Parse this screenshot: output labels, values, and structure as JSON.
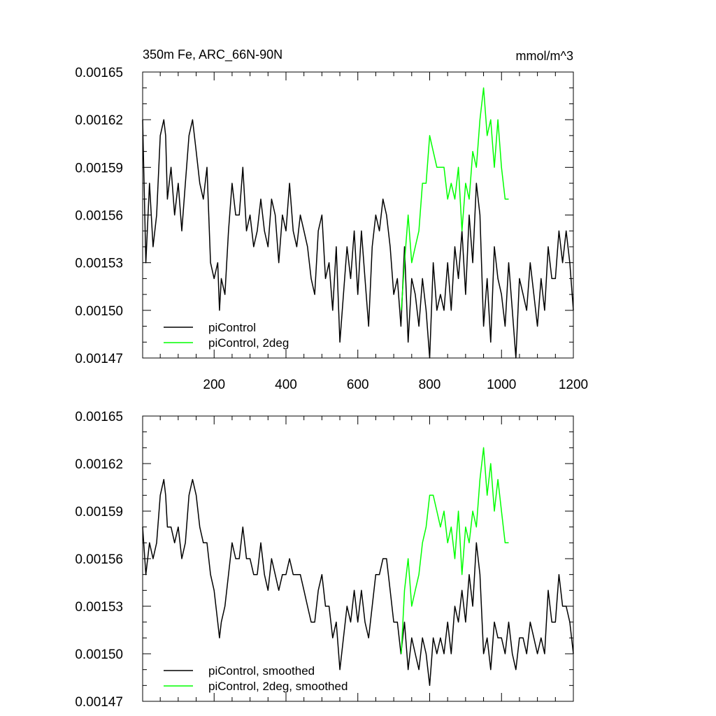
{
  "title_left": "350m Fe, ARC_66N-90N",
  "title_right": "mmol/m^3",
  "colors": {
    "black": "#000000",
    "green": "#00ff00"
  },
  "chart_data": [
    {
      "type": "line",
      "title": "350m Fe, ARC_66N-90N",
      "units": "mmol/m^3",
      "xlim": [
        1,
        1200
      ],
      "ylim": [
        0.00147,
        0.00165
      ],
      "xticks": [
        "200",
        "400",
        "600",
        "800",
        "1000",
        "1200"
      ],
      "yticks": [
        "0.00147",
        "0.00150",
        "0.00153",
        "0.00156",
        "0.00159",
        "0.00162",
        "0.00165"
      ],
      "legend": [
        "piControl",
        "piControl, 2deg"
      ],
      "legend_position": "bottom-left",
      "series": [
        {
          "name": "piControl",
          "color": "#000000",
          "x": [
            1,
            10,
            20,
            30,
            40,
            50,
            60,
            65,
            70,
            80,
            90,
            100,
            110,
            120,
            130,
            140,
            150,
            160,
            170,
            180,
            190,
            200,
            210,
            215,
            220,
            230,
            240,
            250,
            260,
            270,
            280,
            290,
            300,
            310,
            320,
            330,
            340,
            350,
            360,
            370,
            380,
            390,
            400,
            410,
            420,
            430,
            440,
            450,
            460,
            470,
            480,
            490,
            500,
            510,
            520,
            530,
            540,
            550,
            560,
            570,
            580,
            590,
            600,
            610,
            620,
            630,
            640,
            650,
            660,
            670,
            680,
            690,
            700,
            710,
            720,
            730,
            740,
            750,
            760,
            770,
            780,
            790,
            800,
            810,
            820,
            830,
            840,
            850,
            860,
            870,
            880,
            890,
            900,
            910,
            920,
            930,
            940,
            950,
            960,
            970,
            980,
            990,
            1000,
            1010,
            1020,
            1030,
            1040,
            1050,
            1060,
            1070,
            1080,
            1090,
            1100,
            1110,
            1120,
            1130,
            1140,
            1150,
            1160,
            1170,
            1180,
            1190,
            1200
          ],
          "values": [
            0.00162,
            0.00153,
            0.00158,
            0.00154,
            0.00156,
            0.00161,
            0.00162,
            0.00161,
            0.00157,
            0.00159,
            0.00156,
            0.00158,
            0.00155,
            0.00158,
            0.00161,
            0.00162,
            0.0016,
            0.00158,
            0.00157,
            0.00159,
            0.00153,
            0.00152,
            0.00153,
            0.0015,
            0.00152,
            0.00151,
            0.00155,
            0.00158,
            0.00156,
            0.00156,
            0.00159,
            0.00155,
            0.00156,
            0.00154,
            0.00155,
            0.00157,
            0.00155,
            0.00154,
            0.00157,
            0.00156,
            0.00153,
            0.00156,
            0.00155,
            0.00158,
            0.00155,
            0.00154,
            0.00156,
            0.00155,
            0.00154,
            0.00152,
            0.00151,
            0.00155,
            0.00156,
            0.00152,
            0.00153,
            0.0015,
            0.00154,
            0.00148,
            0.00151,
            0.00154,
            0.00152,
            0.00155,
            0.00151,
            0.00155,
            0.00152,
            0.00149,
            0.00154,
            0.00156,
            0.00155,
            0.00157,
            0.00156,
            0.00154,
            0.00151,
            0.00152,
            0.00149,
            0.00154,
            0.00148,
            0.00152,
            0.00151,
            0.00149,
            0.00152,
            0.0015,
            0.00147,
            0.00153,
            0.0015,
            0.00151,
            0.0015,
            0.00153,
            0.0015,
            0.00154,
            0.00152,
            0.00155,
            0.00151,
            0.00156,
            0.00153,
            0.00158,
            0.00156,
            0.00149,
            0.00152,
            0.00148,
            0.00154,
            0.00152,
            0.00151,
            0.00149,
            0.00153,
            0.0015,
            0.00147,
            0.00152,
            0.00151,
            0.0015,
            0.00153,
            0.00151,
            0.00149,
            0.00152,
            0.0015,
            0.00154,
            0.00152,
            0.00152,
            0.00155,
            0.00153,
            0.00155,
            0.00153,
            0.0015
          ]
        },
        {
          "name": "piControl, 2deg",
          "color": "#00ff00",
          "x": [
            721,
            730,
            740,
            750,
            760,
            770,
            780,
            790,
            800,
            810,
            820,
            830,
            840,
            850,
            860,
            870,
            880,
            890,
            900,
            910,
            920,
            930,
            940,
            950,
            960,
            970,
            980,
            990,
            1000,
            1010,
            1020
          ],
          "values": [
            0.0015,
            0.00153,
            0.00156,
            0.00153,
            0.00154,
            0.00155,
            0.00158,
            0.00158,
            0.00161,
            0.0016,
            0.00159,
            0.00159,
            0.00159,
            0.00157,
            0.00158,
            0.00157,
            0.00159,
            0.00155,
            0.00158,
            0.00157,
            0.0016,
            0.00159,
            0.00162,
            0.00164,
            0.00161,
            0.00162,
            0.00159,
            0.00162,
            0.00159,
            0.00157,
            0.00157
          ]
        }
      ]
    },
    {
      "type": "line",
      "xlim": [
        1,
        1200
      ],
      "ylim": [
        0.00147,
        0.00165
      ],
      "yticks": [
        "0.00147",
        "0.00150",
        "0.00153",
        "0.00156",
        "0.00159",
        "0.00162",
        "0.00165"
      ],
      "legend": [
        "piControl, smoothed",
        "piControl, 2deg, smoothed"
      ],
      "legend_position": "bottom-left",
      "series": [
        {
          "name": "piControl, smoothed",
          "color": "#000000",
          "x": [
            1,
            10,
            20,
            30,
            40,
            50,
            60,
            65,
            70,
            80,
            90,
            100,
            110,
            120,
            130,
            140,
            150,
            160,
            170,
            180,
            190,
            200,
            210,
            215,
            220,
            230,
            240,
            250,
            260,
            270,
            280,
            290,
            300,
            310,
            320,
            330,
            340,
            350,
            360,
            370,
            380,
            390,
            400,
            410,
            420,
            430,
            440,
            450,
            460,
            470,
            480,
            490,
            500,
            510,
            520,
            530,
            540,
            550,
            560,
            570,
            580,
            590,
            600,
            610,
            620,
            630,
            640,
            650,
            660,
            670,
            680,
            690,
            700,
            710,
            720,
            730,
            740,
            750,
            760,
            770,
            780,
            790,
            800,
            810,
            820,
            830,
            840,
            850,
            860,
            870,
            880,
            890,
            900,
            910,
            920,
            930,
            940,
            950,
            960,
            970,
            980,
            990,
            1000,
            1010,
            1020,
            1030,
            1040,
            1050,
            1060,
            1070,
            1080,
            1090,
            1100,
            1110,
            1120,
            1130,
            1140,
            1150,
            1160,
            1170,
            1180,
            1190,
            1200
          ],
          "values": [
            0.00158,
            0.00155,
            0.00157,
            0.00156,
            0.00157,
            0.0016,
            0.00161,
            0.0016,
            0.00158,
            0.00158,
            0.00157,
            0.00158,
            0.00156,
            0.00157,
            0.0016,
            0.00161,
            0.0016,
            0.00158,
            0.00157,
            0.00157,
            0.00155,
            0.00154,
            0.00152,
            0.00151,
            0.00152,
            0.00153,
            0.00155,
            0.00157,
            0.00156,
            0.00156,
            0.00158,
            0.00156,
            0.00156,
            0.00155,
            0.00155,
            0.00157,
            0.00155,
            0.00154,
            0.00156,
            0.00155,
            0.00154,
            0.00155,
            0.00155,
            0.00156,
            0.00155,
            0.00155,
            0.00155,
            0.00154,
            0.00153,
            0.00152,
            0.00152,
            0.00154,
            0.00155,
            0.00153,
            0.00153,
            0.00151,
            0.00152,
            0.00149,
            0.00151,
            0.00153,
            0.00152,
            0.00154,
            0.00152,
            0.00154,
            0.00152,
            0.00151,
            0.00153,
            0.00155,
            0.00155,
            0.00156,
            0.00156,
            0.00154,
            0.00152,
            0.00152,
            0.0015,
            0.00152,
            0.00149,
            0.00151,
            0.0015,
            0.00149,
            0.00151,
            0.0015,
            0.00148,
            0.00151,
            0.0015,
            0.00151,
            0.0015,
            0.00152,
            0.0015,
            0.00153,
            0.00152,
            0.00154,
            0.00152,
            0.00155,
            0.00153,
            0.00157,
            0.00155,
            0.0015,
            0.00151,
            0.00149,
            0.00152,
            0.00151,
            0.00151,
            0.0015,
            0.00152,
            0.0015,
            0.00149,
            0.00151,
            0.00151,
            0.0015,
            0.00152,
            0.00151,
            0.0015,
            0.00151,
            0.0015,
            0.00154,
            0.00152,
            0.00152,
            0.00155,
            0.00153,
            0.00153,
            0.00152,
            0.0015
          ]
        },
        {
          "name": "piControl, 2deg, smoothed",
          "color": "#00ff00",
          "x": [
            721,
            730,
            740,
            750,
            760,
            770,
            780,
            790,
            800,
            810,
            820,
            830,
            840,
            850,
            860,
            870,
            880,
            890,
            900,
            910,
            920,
            930,
            940,
            950,
            960,
            970,
            980,
            990,
            1000,
            1010,
            1020
          ],
          "values": [
            0.0015,
            0.00154,
            0.00156,
            0.00153,
            0.00154,
            0.00155,
            0.00157,
            0.00158,
            0.0016,
            0.0016,
            0.00159,
            0.00158,
            0.00159,
            0.00157,
            0.00158,
            0.00156,
            0.00159,
            0.00155,
            0.00158,
            0.00157,
            0.00159,
            0.00158,
            0.00161,
            0.00163,
            0.0016,
            0.00162,
            0.00159,
            0.00161,
            0.00159,
            0.00157,
            0.00157
          ]
        }
      ]
    }
  ]
}
